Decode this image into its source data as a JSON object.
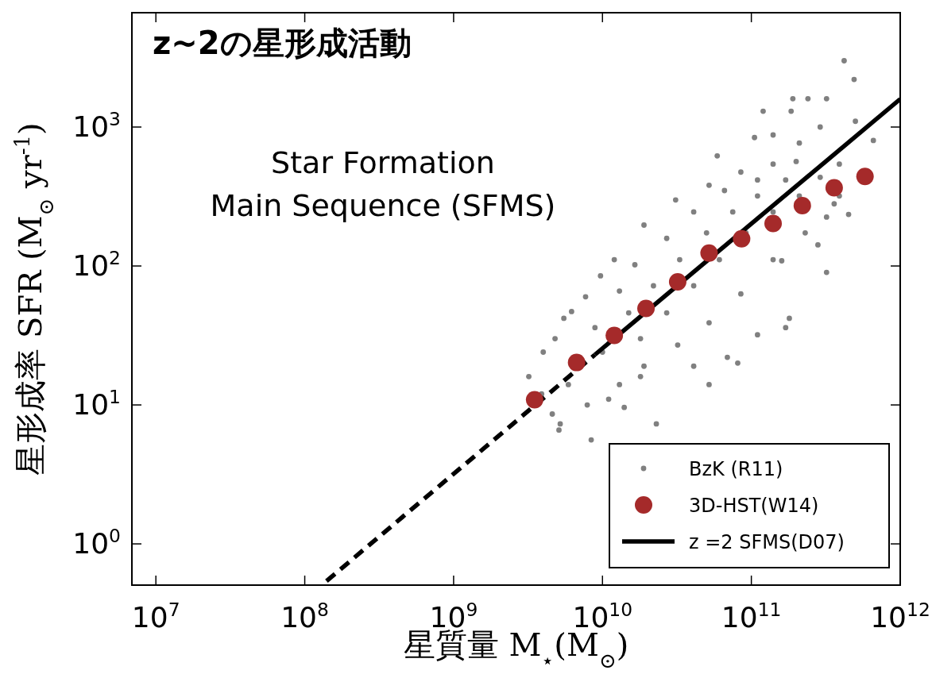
{
  "chart_data": {
    "type": "scatter",
    "title": "z~2の星形成活動",
    "xlabel": "星質量 M$_{⋆}$(M$_{⊙}$)",
    "ylabel": "星形成率 SFR (M$_{⊙}$ yr$^{-1}$)",
    "annotations": [
      "Star Formation",
      "Main Sequence (SFMS)"
    ],
    "log": "xy",
    "xlim": [
      6900000.0,
      1000000000000.0
    ],
    "ylim": [
      0.505,
      6650
    ],
    "xticks": [
      {
        "value": 10000000.0,
        "label": "10$^{7}$"
      },
      {
        "value": 100000000.0,
        "label": "10$^{8}$"
      },
      {
        "value": 1000000000.0,
        "label": "10$^{9}$"
      },
      {
        "value": 10000000000.0,
        "label": "10$^{10}$"
      },
      {
        "value": 100000000000.0,
        "label": "10$^{11}$"
      },
      {
        "value": 1000000000000.0,
        "label": "10$^{12}$"
      }
    ],
    "yticks": [
      {
        "value": 1,
        "label": "10$^{0}$"
      },
      {
        "value": 10,
        "label": "10$^{1}$"
      },
      {
        "value": 100,
        "label": "10$^{2}$"
      },
      {
        "value": 1000,
        "label": "10$^{3}$"
      }
    ],
    "grid": false,
    "legend": "bottom right",
    "series": [
      {
        "name": "BzK (R11)",
        "color": "#808080",
        "marker": "circle",
        "x": [
          420000000000.0,
          490000000000.0,
          190000000000.0,
          240000000000.0,
          320000000000.0,
          120000000000.0,
          185000000000.0,
          500000000000.0,
          660000000000.0,
          59000000000.0,
          320000000000.0,
          170000000000.0,
          81000000000.0,
          52000000000.0,
          23000000000.0,
          8400000000.0,
          5100000000.0,
          3200000000.0,
          4000000000.0,
          7700000000.0,
          9700000000.0,
          6200000000.0,
          5500000000.0,
          4600000000.0,
          450000000000.0,
          280000000000.0,
          160000000000.0,
          180000000000.0,
          110000000000.0,
          69000000000.0,
          41000000000.0,
          18000000000.0,
          14000000000.0,
          11000000000.0,
          12000000000.0,
          19000000000.0,
          31000000000.0,
          52000000000.0,
          85000000000.0,
          140000000000.0,
          200000000000.0,
          290000000000.0,
          390000000000.0,
          320000000000.0,
          13000000000.0,
          19000000000.0,
          32000000000.0,
          52000000000.0,
          85000000000.0,
          140000000000.0,
          230000000000.0,
          360000000000.0,
          15000000000.0,
          22000000000.0,
          33000000000.0,
          50000000000.0,
          75000000000.0,
          110000000000.0,
          170000000000.0,
          18000000000.0,
          27000000000.0,
          41000000000.0,
          61000000000.0,
          92000000000.0,
          140000000000.0,
          210000000000.0,
          13000000000.0,
          16500000000.0,
          27000000000.0,
          41000000000.0,
          66000000000.0,
          110000000000.0,
          210000000000.0,
          140000000000.0,
          105000000000.0,
          290000000000.0,
          390000000000.0,
          4800000000.0,
          5900000000.0,
          7900000000.0,
          5200000000.0,
          3900000000.0,
          10000000000.0,
          8900000000.0
        ],
        "values": [
          3000,
          2200,
          1600,
          1600,
          1600,
          1300,
          1300,
          1100,
          800,
          620,
          90,
          36,
          20,
          14,
          7.3,
          5.6,
          6.6,
          16,
          24,
          60,
          85,
          47,
          42,
          8.6,
          235,
          142,
          109,
          42,
          32,
          22,
          19,
          16,
          9.6,
          11,
          111,
          197,
          299,
          381,
          474,
          541,
          565,
          435,
          319,
          225,
          14,
          19,
          27,
          39,
          63,
          111,
          173,
          280,
          46,
          72,
          111,
          173,
          245,
          319,
          416,
          30,
          46,
          72,
          111,
          173,
          245,
          319,
          66,
          102,
          158,
          245,
          349,
          416,
          767,
          877,
          840,
          1000,
          541,
          30,
          14,
          10,
          7.3,
          12,
          24,
          36
        ]
      },
      {
        "name": "3D-HST(W14)",
        "color": "#a52a2a",
        "marker": "circle",
        "x": [
          3500000000.0,
          6700000000.0,
          12000000000.0,
          19600000000.0,
          32000000000.0,
          52000000000.0,
          86000000000.0,
          140000000000.0,
          220000000000.0,
          360000000000.0,
          580000000000.0
        ],
        "values": [
          10.9,
          20.2,
          31.6,
          49.5,
          76.9,
          124,
          157,
          202,
          272,
          366,
          441
        ]
      },
      {
        "name": "z =2 SFMS(D07)",
        "type": "line",
        "color": "#000000",
        "marker": "none",
        "line_style": "solid",
        "x": [
          8900000000.0,
          1000000000000.0
        ],
        "values": [
          23,
          1590
        ]
      },
      {
        "type": "line",
        "color": "#000000",
        "marker": "none",
        "line_style": "dashed",
        "x": [
          140000000.0,
          8900000000.0
        ],
        "values": [
          0.54,
          23
        ]
      }
    ]
  }
}
